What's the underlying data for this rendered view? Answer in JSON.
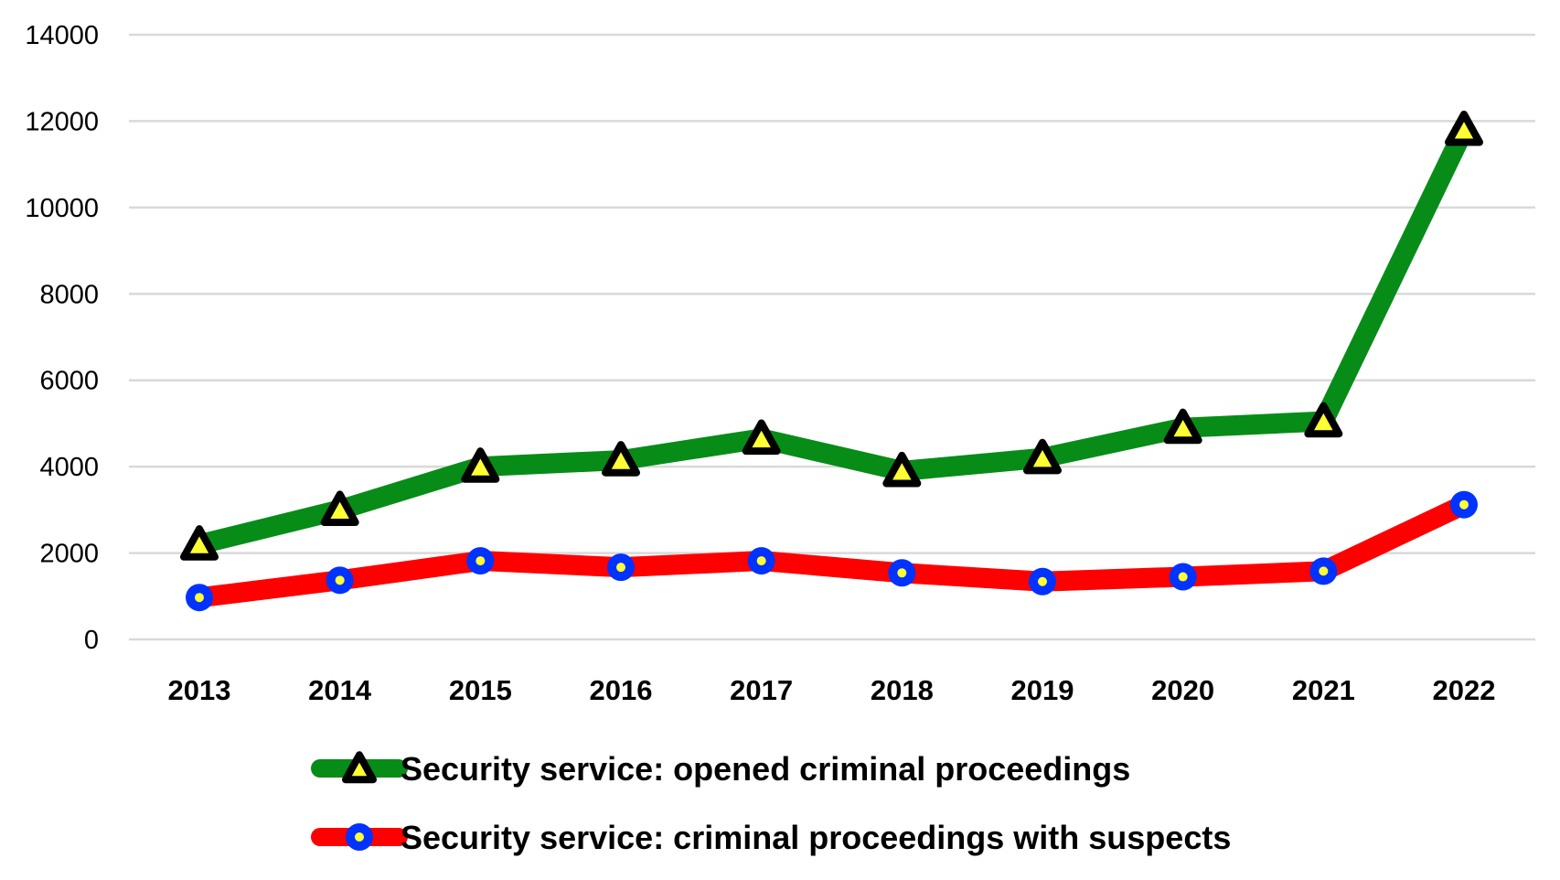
{
  "chart_data": {
    "type": "line",
    "title": "",
    "xlabel": "",
    "ylabel": "",
    "x": [
      "2013",
      "2014",
      "2015",
      "2016",
      "2017",
      "2018",
      "2019",
      "2020",
      "2021",
      "2022"
    ],
    "ylim": [
      0,
      14000
    ],
    "yticks": [
      0,
      2000,
      4000,
      6000,
      8000,
      10000,
      12000,
      14000
    ],
    "ytick_labels": [
      "0",
      "2000",
      "4000",
      "6000",
      "8000",
      "10000",
      "12000",
      "14000"
    ],
    "grid": "horizontal",
    "legend_position": "bottom",
    "series": [
      {
        "name": "Security service: opened criminal proceedings",
        "values": [
          2200,
          3000,
          4000,
          4150,
          4650,
          3900,
          4200,
          4900,
          5050,
          11800
        ],
        "line_color": "#078c18",
        "marker": "triangle",
        "marker_fill": "#ffff33",
        "marker_edge": "#000000"
      },
      {
        "name": "Security service: criminal proceedings with suspects",
        "values": [
          970,
          1370,
          1820,
          1670,
          1820,
          1540,
          1340,
          1450,
          1580,
          3120
        ],
        "line_color": "#ff0000",
        "marker": "circle",
        "marker_fill": "#ffff33",
        "marker_edge": "#0033ff"
      }
    ]
  }
}
